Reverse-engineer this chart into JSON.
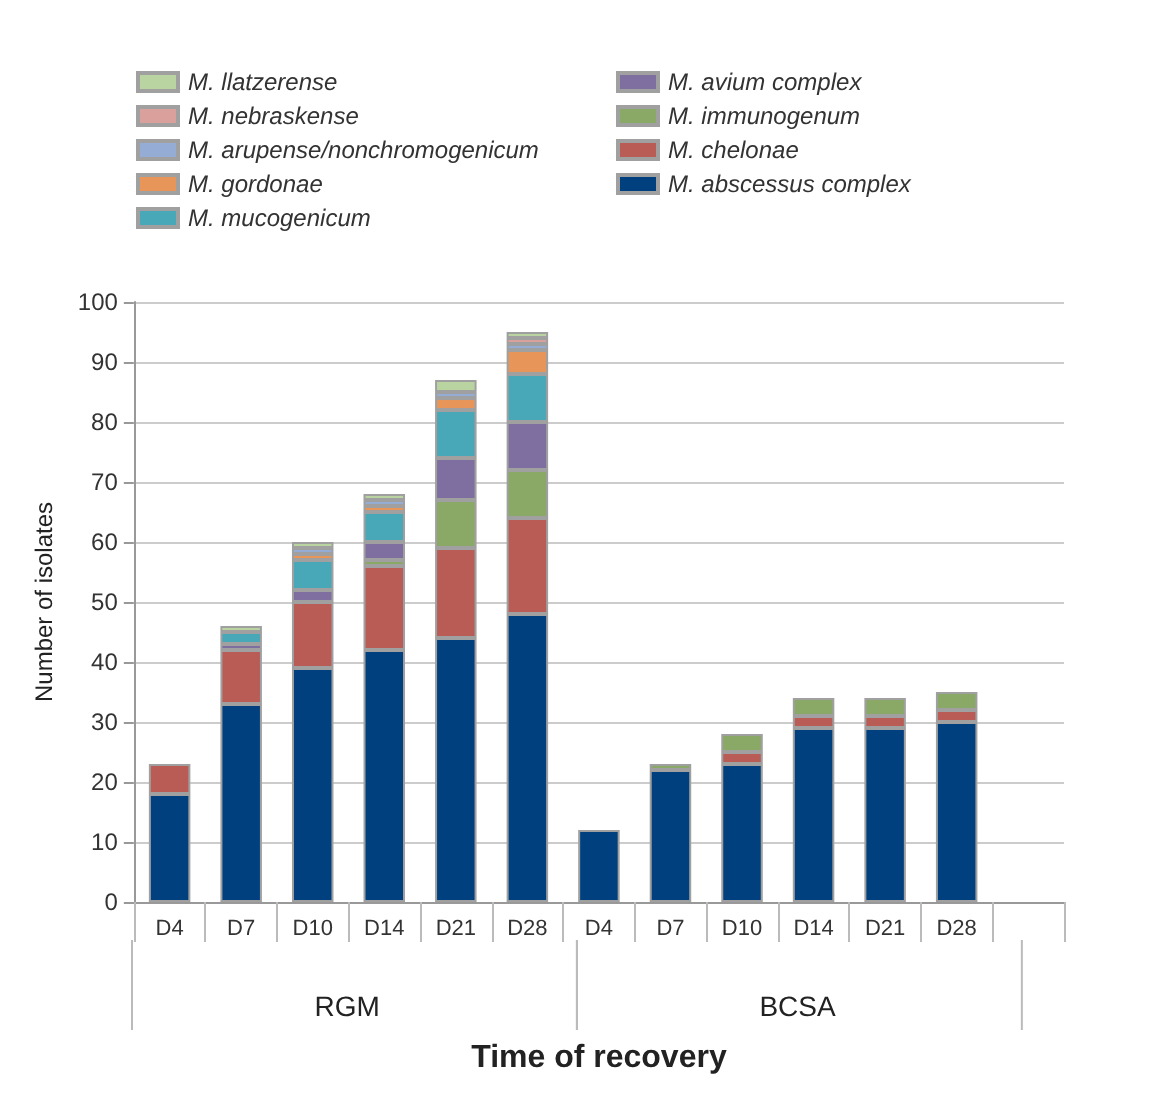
{
  "chart_data": {
    "type": "bar",
    "stacked": true,
    "xlabel": "Time of recovery",
    "ylabel": "Number of isolates",
    "categories": [
      "D4",
      "D7",
      "D10",
      "D14",
      "D21",
      "D28",
      "D4",
      "D7",
      "D10",
      "D14",
      "D21",
      "D28",
      null
    ],
    "annotations": [
      "RGM",
      "BCSA"
    ],
    "series": [
      {
        "name": "M. abscessus complex",
        "color": "#00407f",
        "values": [
          18,
          33,
          39,
          42,
          44,
          48,
          12,
          22,
          23,
          29,
          29,
          30,
          null
        ]
      },
      {
        "name": "M. chelonae",
        "color": "#b85c55",
        "values": [
          5,
          9,
          11,
          14,
          15,
          16,
          null,
          null,
          2,
          2,
          2,
          2,
          null
        ]
      },
      {
        "name": "M. immunogenum",
        "color": "#8aa866",
        "values": [
          null,
          null,
          null,
          1,
          8,
          8,
          null,
          1,
          3,
          3,
          3,
          3,
          null
        ]
      },
      {
        "name": "M. avium complex",
        "color": "#7e6fa0",
        "values": [
          null,
          1,
          2,
          3,
          7,
          8,
          null,
          null,
          null,
          null,
          null,
          null,
          null
        ]
      },
      {
        "name": "M. mucogenicum",
        "color": "#48a8b8",
        "values": [
          null,
          2,
          5,
          5,
          8,
          8,
          null,
          null,
          null,
          null,
          null,
          null,
          null
        ]
      },
      {
        "name": "M. gordonae",
        "color": "#e8955a",
        "values": [
          null,
          null,
          1,
          1,
          2,
          4,
          null,
          null,
          null,
          null,
          null,
          null,
          null
        ]
      },
      {
        "name": "M. arupense/nonchromogenicum",
        "color": "#95acd4",
        "values": [
          null,
          null,
          1,
          1,
          1,
          1,
          null,
          null,
          null,
          null,
          null,
          null,
          null
        ]
      },
      {
        "name": "M. nebraskense",
        "color": "#d9a09c",
        "values": [
          null,
          null,
          null,
          null,
          null,
          1,
          null,
          null,
          null,
          null,
          null,
          null,
          null
        ]
      },
      {
        "name": "M. llatzerense",
        "color": "#b9d4a0",
        "values": [
          null,
          1,
          1,
          1,
          2,
          1,
          null,
          null,
          null,
          null,
          null,
          null,
          null
        ]
      }
    ],
    "ylim": [
      0,
      100
    ],
    "yticks": [
      0,
      10,
      20,
      30,
      40,
      50,
      60,
      70,
      80,
      90,
      100
    ],
    "grid": "y",
    "legend": "top left"
  }
}
